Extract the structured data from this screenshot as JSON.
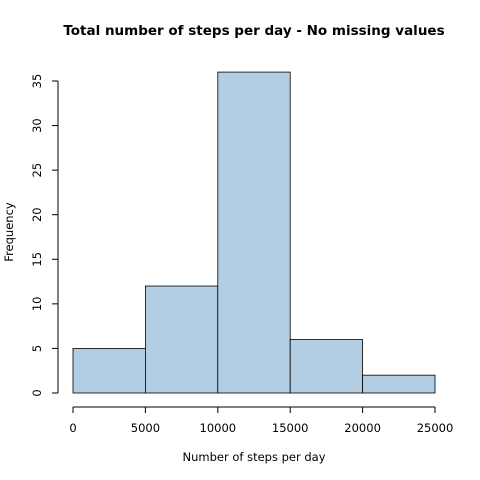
{
  "chart_data": {
    "type": "bar",
    "title": "Total number of steps per day - No missing values",
    "xlabel": "Number of steps per day",
    "ylabel": "Frequency",
    "bins": [
      {
        "from": 0,
        "to": 5000,
        "value": 5
      },
      {
        "from": 5000,
        "to": 10000,
        "value": 12
      },
      {
        "from": 10000,
        "to": 15000,
        "value": 36
      },
      {
        "from": 15000,
        "to": 20000,
        "value": 6
      },
      {
        "from": 20000,
        "to": 25000,
        "value": 2
      }
    ],
    "xlim": [
      0,
      25000
    ],
    "ylim": [
      0,
      36
    ],
    "xticks": [
      "0",
      "5000",
      "10000",
      "15000",
      "20000",
      "25000"
    ],
    "yticks": [
      "0",
      "5",
      "10",
      "15",
      "20",
      "25",
      "30",
      "35"
    ],
    "bar_color": "#b3cde3",
    "grid": false
  }
}
